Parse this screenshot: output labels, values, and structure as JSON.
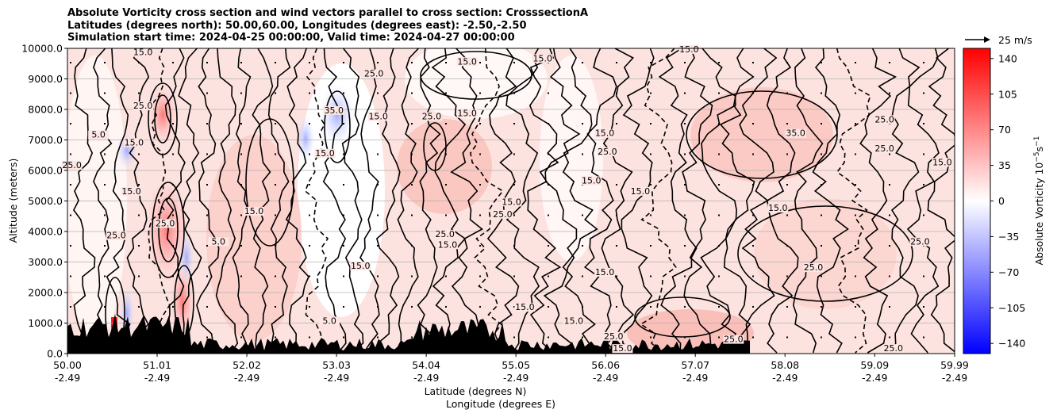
{
  "chart_data": {
    "type": "contour",
    "title_lines": [
      "Absolute Vorticity cross section and wind vectors parallel to cross section: CrosssectionA",
      "Latitudes (degrees north): 50.00,60.00, Longitudes (degrees east): -2.50,-2.50",
      "Simulation start time: 2024-04-25 00:00:00, Valid time: 2024-04-27 00:00:00"
    ],
    "ylabel": "Altitude (meters)",
    "xlabel_lines": [
      "Latitude (degrees N)",
      "Longitude (degrees E)"
    ],
    "xlim": [
      50.0,
      59.99
    ],
    "ylim": [
      0,
      10000
    ],
    "grid": "horizontal",
    "x_ticks": [
      {
        "lat": "50.00",
        "lon": "-2.49",
        "value": 50.0
      },
      {
        "lat": "51.01",
        "lon": "-2.49",
        "value": 51.01
      },
      {
        "lat": "52.02",
        "lon": "-2.49",
        "value": 52.02
      },
      {
        "lat": "53.03",
        "lon": "-2.49",
        "value": 53.03
      },
      {
        "lat": "54.04",
        "lon": "-2.49",
        "value": 54.04
      },
      {
        "lat": "55.05",
        "lon": "-2.49",
        "value": 55.05
      },
      {
        "lat": "56.06",
        "lon": "-2.49",
        "value": 56.06
      },
      {
        "lat": "57.07",
        "lon": "-2.49",
        "value": 57.07
      },
      {
        "lat": "58.08",
        "lon": "-2.49",
        "value": 58.08
      },
      {
        "lat": "59.09",
        "lon": "-2.49",
        "value": 59.09
      },
      {
        "lat": "59.99",
        "lon": "-2.49",
        "value": 59.99
      }
    ],
    "y_ticks": [
      {
        "label": "0.0",
        "value": 0
      },
      {
        "label": "1000.0",
        "value": 1000
      },
      {
        "label": "2000.0",
        "value": 2000
      },
      {
        "label": "3000.0",
        "value": 3000
      },
      {
        "label": "4000.0",
        "value": 4000
      },
      {
        "label": "5000.0",
        "value": 5000
      },
      {
        "label": "6000.0",
        "value": 6000
      },
      {
        "label": "7000.0",
        "value": 7000
      },
      {
        "label": "8000.0",
        "value": 8000
      },
      {
        "label": "9000.0",
        "value": 9000
      },
      {
        "label": "10000.0",
        "value": 10000
      }
    ],
    "colorbar": {
      "label": "Absolute Vorticity 10",
      "label_exponent": "−5",
      "label_unit": "s",
      "label_unit_exponent": "−1",
      "range": [
        -150,
        150
      ],
      "ticks": [
        {
          "label": "140",
          "value": 140
        },
        {
          "label": "105",
          "value": 105
        },
        {
          "label": "70",
          "value": 70
        },
        {
          "label": "35",
          "value": 35
        },
        {
          "label": "0",
          "value": 0
        },
        {
          "label": "−35",
          "value": -35
        },
        {
          "label": "−70",
          "value": -70
        },
        {
          "label": "−105",
          "value": -105
        },
        {
          "label": "−140",
          "value": -140
        }
      ],
      "colormap": "bwr",
      "colors": {
        "low": "#0000ff",
        "mid": "#ffffff",
        "high": "#ff0000"
      }
    },
    "reference_vector": {
      "label": "25 m/s"
    },
    "contour_levels": [
      -25,
      -15,
      -5,
      5,
      15,
      25,
      35
    ],
    "contour_labels": [
      {
        "text": "15.0",
        "lat": 50.85,
        "alt": 9800
      },
      {
        "text": "25.0",
        "lat": 50.85,
        "alt": 8050
      },
      {
        "text": "5.0",
        "lat": 50.35,
        "alt": 7100
      },
      {
        "text": "15.0",
        "lat": 50.75,
        "alt": 6850
      },
      {
        "text": "25.0",
        "lat": 50.05,
        "alt": 6100
      },
      {
        "text": "15.0",
        "lat": 50.72,
        "alt": 5250
      },
      {
        "text": "25.0",
        "lat": 51.1,
        "alt": 4200
      },
      {
        "text": "25.0",
        "lat": 50.55,
        "alt": 3800
      },
      {
        "text": "5.0",
        "lat": 51.7,
        "alt": 3600
      },
      {
        "text": "15.0",
        "lat": 52.1,
        "alt": 4600
      },
      {
        "text": "15.0",
        "lat": 52.9,
        "alt": 6500
      },
      {
        "text": "35.0",
        "lat": 53.0,
        "alt": 7900
      },
      {
        "text": "25.0",
        "lat": 53.45,
        "alt": 9100
      },
      {
        "text": "15.0",
        "lat": 53.5,
        "alt": 7700
      },
      {
        "text": "25.0",
        "lat": 54.1,
        "alt": 7700
      },
      {
        "text": "15.0",
        "lat": 54.5,
        "alt": 7800
      },
      {
        "text": "15.0",
        "lat": 54.5,
        "alt": 9500
      },
      {
        "text": "15.0",
        "lat": 55.0,
        "alt": 4900
      },
      {
        "text": "25.0",
        "lat": 54.9,
        "alt": 4500
      },
      {
        "text": "25.0",
        "lat": 54.25,
        "alt": 3850
      },
      {
        "text": "15.0",
        "lat": 54.28,
        "alt": 3500
      },
      {
        "text": "15.0",
        "lat": 53.3,
        "alt": 2800
      },
      {
        "text": "15.0",
        "lat": 56.05,
        "alt": 7150
      },
      {
        "text": "25.0",
        "lat": 56.08,
        "alt": 6550
      },
      {
        "text": "15.0",
        "lat": 55.9,
        "alt": 5600
      },
      {
        "text": "15.0",
        "lat": 56.45,
        "alt": 5250
      },
      {
        "text": "15.0",
        "lat": 56.05,
        "alt": 2600
      },
      {
        "text": "15.0",
        "lat": 55.15,
        "alt": 1450
      },
      {
        "text": "5.0",
        "lat": 52.95,
        "alt": 1000
      },
      {
        "text": "15.0",
        "lat": 58.0,
        "alt": 4700
      },
      {
        "text": "25.0",
        "lat": 59.6,
        "alt": 3600
      },
      {
        "text": "25.0",
        "lat": 58.4,
        "alt": 2750
      },
      {
        "text": "35.0",
        "lat": 58.2,
        "alt": 7150
      },
      {
        "text": "25.0",
        "lat": 59.2,
        "alt": 7600
      },
      {
        "text": "25.0",
        "lat": 59.2,
        "alt": 6650
      },
      {
        "text": "15.0",
        "lat": 59.85,
        "alt": 6200
      },
      {
        "text": "15.0",
        "lat": 57.0,
        "alt": 9900
      },
      {
        "text": "25.0",
        "lat": 57.5,
        "alt": 400
      },
      {
        "text": "15.0",
        "lat": 56.25,
        "alt": 100
      },
      {
        "text": "15.0",
        "lat": 55.7,
        "alt": 1000
      },
      {
        "text": "25.0",
        "lat": 56.15,
        "alt": 500
      },
      {
        "text": "25.0",
        "lat": 59.3,
        "alt": 100
      },
      {
        "text": "15.0",
        "lat": 55.35,
        "alt": 9600
      }
    ]
  }
}
